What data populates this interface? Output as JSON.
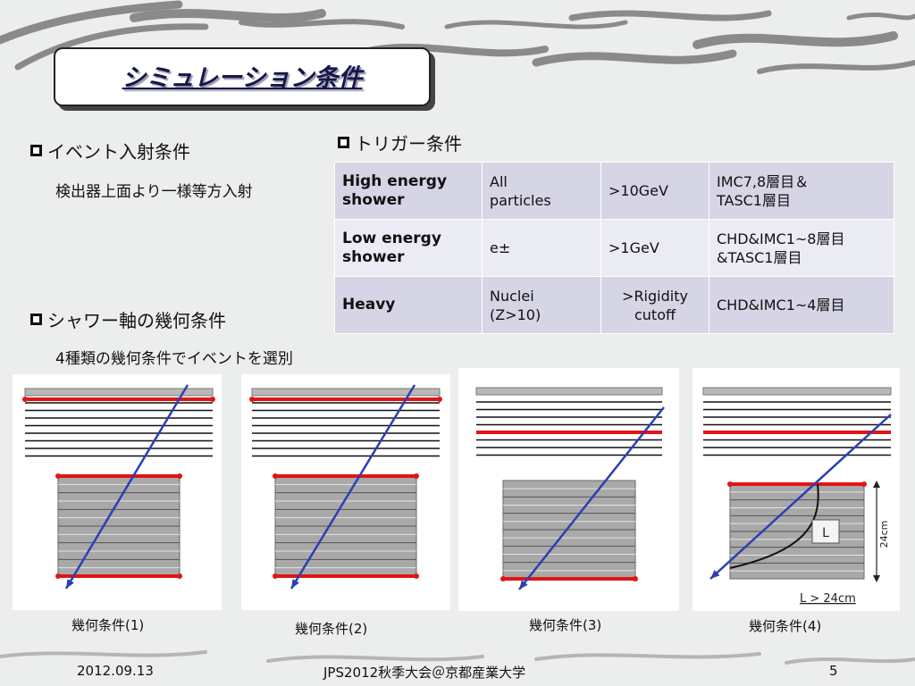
{
  "slide": {
    "title": "シミュレーション条件",
    "footer": {
      "date": "2012.09.13",
      "conference": "JPS2012秋季大会＠京都産業大学",
      "page": "5"
    }
  },
  "left": {
    "event": {
      "heading": "イベント入射条件",
      "text": "検出器上面より一様等方入射"
    },
    "shower": {
      "heading": "シャワー軸の幾何条件",
      "text": "4種類の幾何条件でイベントを選別"
    }
  },
  "trigger": {
    "heading": "トリガー条件",
    "rows": [
      {
        "name_l1": "High energy",
        "name_l2": "shower",
        "particle_l1": "All",
        "particle_l2": "particles",
        "energy_l1": ">10GeV",
        "energy_l2": "",
        "layer_l1": "IMC7,8層目＆",
        "layer_l2": "TASC1層目"
      },
      {
        "name_l1": "Low energy",
        "name_l2": "shower",
        "particle_l1": "e±",
        "particle_l2": "",
        "energy_l1": ">1GeV",
        "energy_l2": "",
        "layer_l1": "CHD&IMC1~8層目",
        "layer_l2": "&TASC1層目"
      },
      {
        "name_l1": "Heavy",
        "name_l2": "",
        "particle_l1": "Nuclei",
        "particle_l2": "(Z>10)",
        "energy_l1": ">Rigidity",
        "energy_l2": "cutoff",
        "layer_l1": "CHD&IMC1~4層目",
        "layer_l2": ""
      }
    ]
  },
  "geometry": {
    "captions": [
      "幾何条件(1)",
      "幾何条件(2)",
      "幾何条件(3)",
      "幾何条件(4)"
    ],
    "panel4_labels": {
      "L": "L",
      "depth": "24cm",
      "condition": "L > 24cm"
    }
  },
  "colors": {
    "title": "#16164a",
    "red_layer": "#e01515",
    "track": "#2d3fb0",
    "table_dark": "#d5d5e6",
    "table_light": "#ebebf3"
  }
}
